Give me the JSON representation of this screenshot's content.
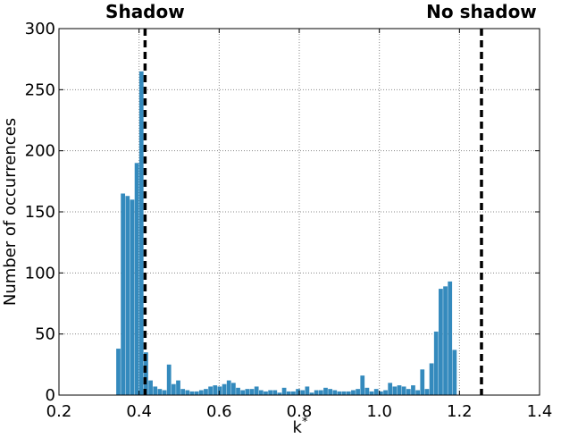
{
  "chart_data": {
    "type": "bar",
    "title": "",
    "xlabel": "k",
    "xlabel_superscript": "*",
    "ylabel": "Number of occurrences",
    "xlim": [
      0.2,
      1.4
    ],
    "ylim": [
      0,
      300
    ],
    "xticks": [
      "0.2",
      "0.4",
      "0.6",
      "0.8",
      "1.0",
      "1.2",
      "1.4"
    ],
    "yticks": [
      "0",
      "50",
      "100",
      "150",
      "200",
      "250",
      "300"
    ],
    "grid": true,
    "bar_color": "#348abd",
    "bin_width": 0.0115,
    "bin_start": 0.343,
    "values": [
      38,
      165,
      163,
      160,
      190,
      265,
      35,
      12,
      7,
      5,
      4,
      25,
      9,
      12,
      5,
      4,
      3,
      3,
      4,
      5,
      7,
      8,
      7,
      9,
      12,
      10,
      6,
      4,
      5,
      5,
      7,
      4,
      3,
      4,
      4,
      2,
      6,
      3,
      3,
      5,
      4,
      7,
      2,
      4,
      4,
      6,
      5,
      4,
      3,
      3,
      3,
      4,
      5,
      16,
      6,
      3,
      5,
      3,
      4,
      10,
      7,
      8,
      7,
      5,
      8,
      4,
      21,
      5,
      26,
      52,
      87,
      89,
      93,
      37
    ],
    "annotations": [
      {
        "label": "Shadow",
        "x": 0.415
      },
      {
        "label": "No shadow",
        "x": 1.255
      }
    ]
  }
}
